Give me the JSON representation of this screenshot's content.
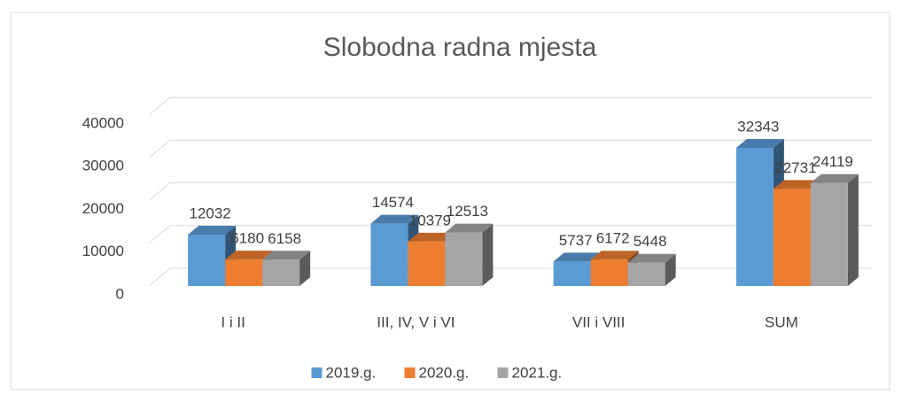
{
  "chart_data": {
    "type": "bar",
    "title": "Slobodna radna mjesta",
    "categories": [
      "I i II",
      "III, IV, V i VI",
      "VII i VIII",
      "SUM"
    ],
    "series": [
      {
        "name": "2019.g.",
        "color": "#5b9bd5",
        "values": [
          12032,
          14574,
          5737,
          32343
        ]
      },
      {
        "name": "2020.g.",
        "color": "#ed7d31",
        "values": [
          6180,
          10379,
          6172,
          22731
        ]
      },
      {
        "name": "2021.g.",
        "color": "#a5a5a5",
        "values": [
          6158,
          12513,
          5448,
          24119
        ]
      }
    ],
    "ylim": [
      0,
      40000
    ],
    "yticks": [
      0,
      10000,
      20000,
      30000,
      40000
    ],
    "grid": true,
    "legend": "bottom"
  }
}
